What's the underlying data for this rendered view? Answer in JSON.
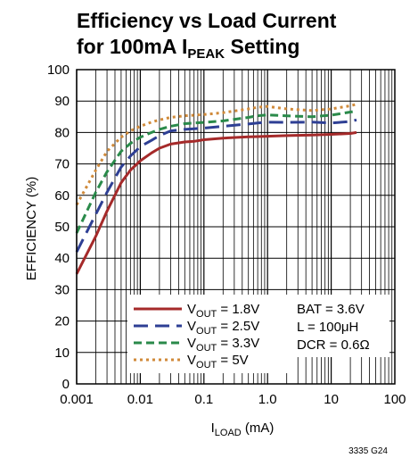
{
  "chart_data": {
    "type": "line",
    "title_line1": "Efficiency vs Load Current",
    "title_line2_main": "for 100mA I",
    "title_line2_sub": "PEAK",
    "title_line2_tail": " Setting",
    "ylabel": "EFFICIENCY (%)",
    "xlabel_main": "I",
    "xlabel_sub": "LOAD",
    "xlabel_tail": " (mA)",
    "xscale": "log",
    "xlim": [
      0.001,
      100
    ],
    "ylim": [
      0,
      100
    ],
    "x_ticks": [
      0.001,
      0.01,
      0.1,
      1,
      10,
      100
    ],
    "x_tick_labels": [
      "0.001",
      "0.01",
      "0.1",
      "1.0",
      "10",
      "100"
    ],
    "y_ticks": [
      0,
      10,
      20,
      30,
      40,
      50,
      60,
      70,
      80,
      90,
      100
    ],
    "y_tick_labels": [
      "0",
      "10",
      "20",
      "30",
      "40",
      "50",
      "60",
      "70",
      "80",
      "90",
      "100"
    ],
    "grid": true,
    "legend_position": "bottom-left",
    "series": [
      {
        "name_main": "V",
        "name_sub": "OUT",
        "name_tail": " = 1.8V",
        "color": "#a52a2a",
        "dash": "solid",
        "x": [
          0.001,
          0.002,
          0.003,
          0.005,
          0.007,
          0.01,
          0.015,
          0.02,
          0.03,
          0.05,
          0.07,
          0.1,
          0.2,
          0.5,
          0.7,
          1,
          2,
          5,
          10,
          20,
          25
        ],
        "y": [
          35,
          47,
          55,
          64,
          68,
          71,
          73.5,
          75,
          76.3,
          77,
          77.2,
          77.7,
          78.2,
          78.6,
          78.7,
          78.8,
          79,
          79.2,
          79.4,
          79.7,
          80
        ]
      },
      {
        "name_main": "V",
        "name_sub": "OUT",
        "name_tail": " = 2.5V",
        "color": "#2e3f94",
        "dash": "long",
        "x": [
          0.001,
          0.002,
          0.003,
          0.005,
          0.007,
          0.01,
          0.015,
          0.02,
          0.03,
          0.05,
          0.07,
          0.1,
          0.2,
          0.5,
          0.7,
          1,
          2,
          5,
          10,
          20,
          25
        ],
        "y": [
          42,
          54,
          61,
          69,
          72.5,
          75.5,
          77.5,
          79,
          80.5,
          81,
          81.2,
          81.4,
          82,
          82.7,
          83,
          83.3,
          83.2,
          83.3,
          83,
          83.5,
          84
        ]
      },
      {
        "name_main": "V",
        "name_sub": "OUT",
        "name_tail": " = 3.3V",
        "color": "#2a8a4a",
        "dash": "medium",
        "x": [
          0.001,
          0.002,
          0.003,
          0.005,
          0.007,
          0.01,
          0.015,
          0.02,
          0.03,
          0.05,
          0.07,
          0.1,
          0.2,
          0.5,
          0.7,
          1,
          2,
          5,
          10,
          20,
          25
        ],
        "y": [
          48,
          61,
          67.5,
          74,
          76.5,
          78.5,
          80,
          81,
          82,
          82.8,
          83,
          83.2,
          83.7,
          84.8,
          85.3,
          85.6,
          85.3,
          85,
          85.5,
          86.5,
          86.8
        ]
      },
      {
        "name_main": "V",
        "name_sub": "OUT",
        "name_tail": " = 5V",
        "color": "#d08a3a",
        "dash": "dotted",
        "x": [
          0.001,
          0.002,
          0.003,
          0.005,
          0.007,
          0.01,
          0.015,
          0.02,
          0.03,
          0.05,
          0.07,
          0.1,
          0.2,
          0.5,
          0.7,
          1,
          2,
          5,
          10,
          20,
          25
        ],
        "y": [
          57,
          68,
          74,
          78.5,
          80.5,
          82,
          83.3,
          84,
          84.8,
          85.3,
          85.5,
          85.7,
          86.3,
          87.5,
          88,
          88.3,
          87.5,
          87,
          87.5,
          88.5,
          89
        ]
      }
    ],
    "conditions": [
      "BAT = 3.6V",
      "L = 100μH",
      "DCR = 0.6Ω"
    ],
    "figure_id": "3335 G24"
  }
}
